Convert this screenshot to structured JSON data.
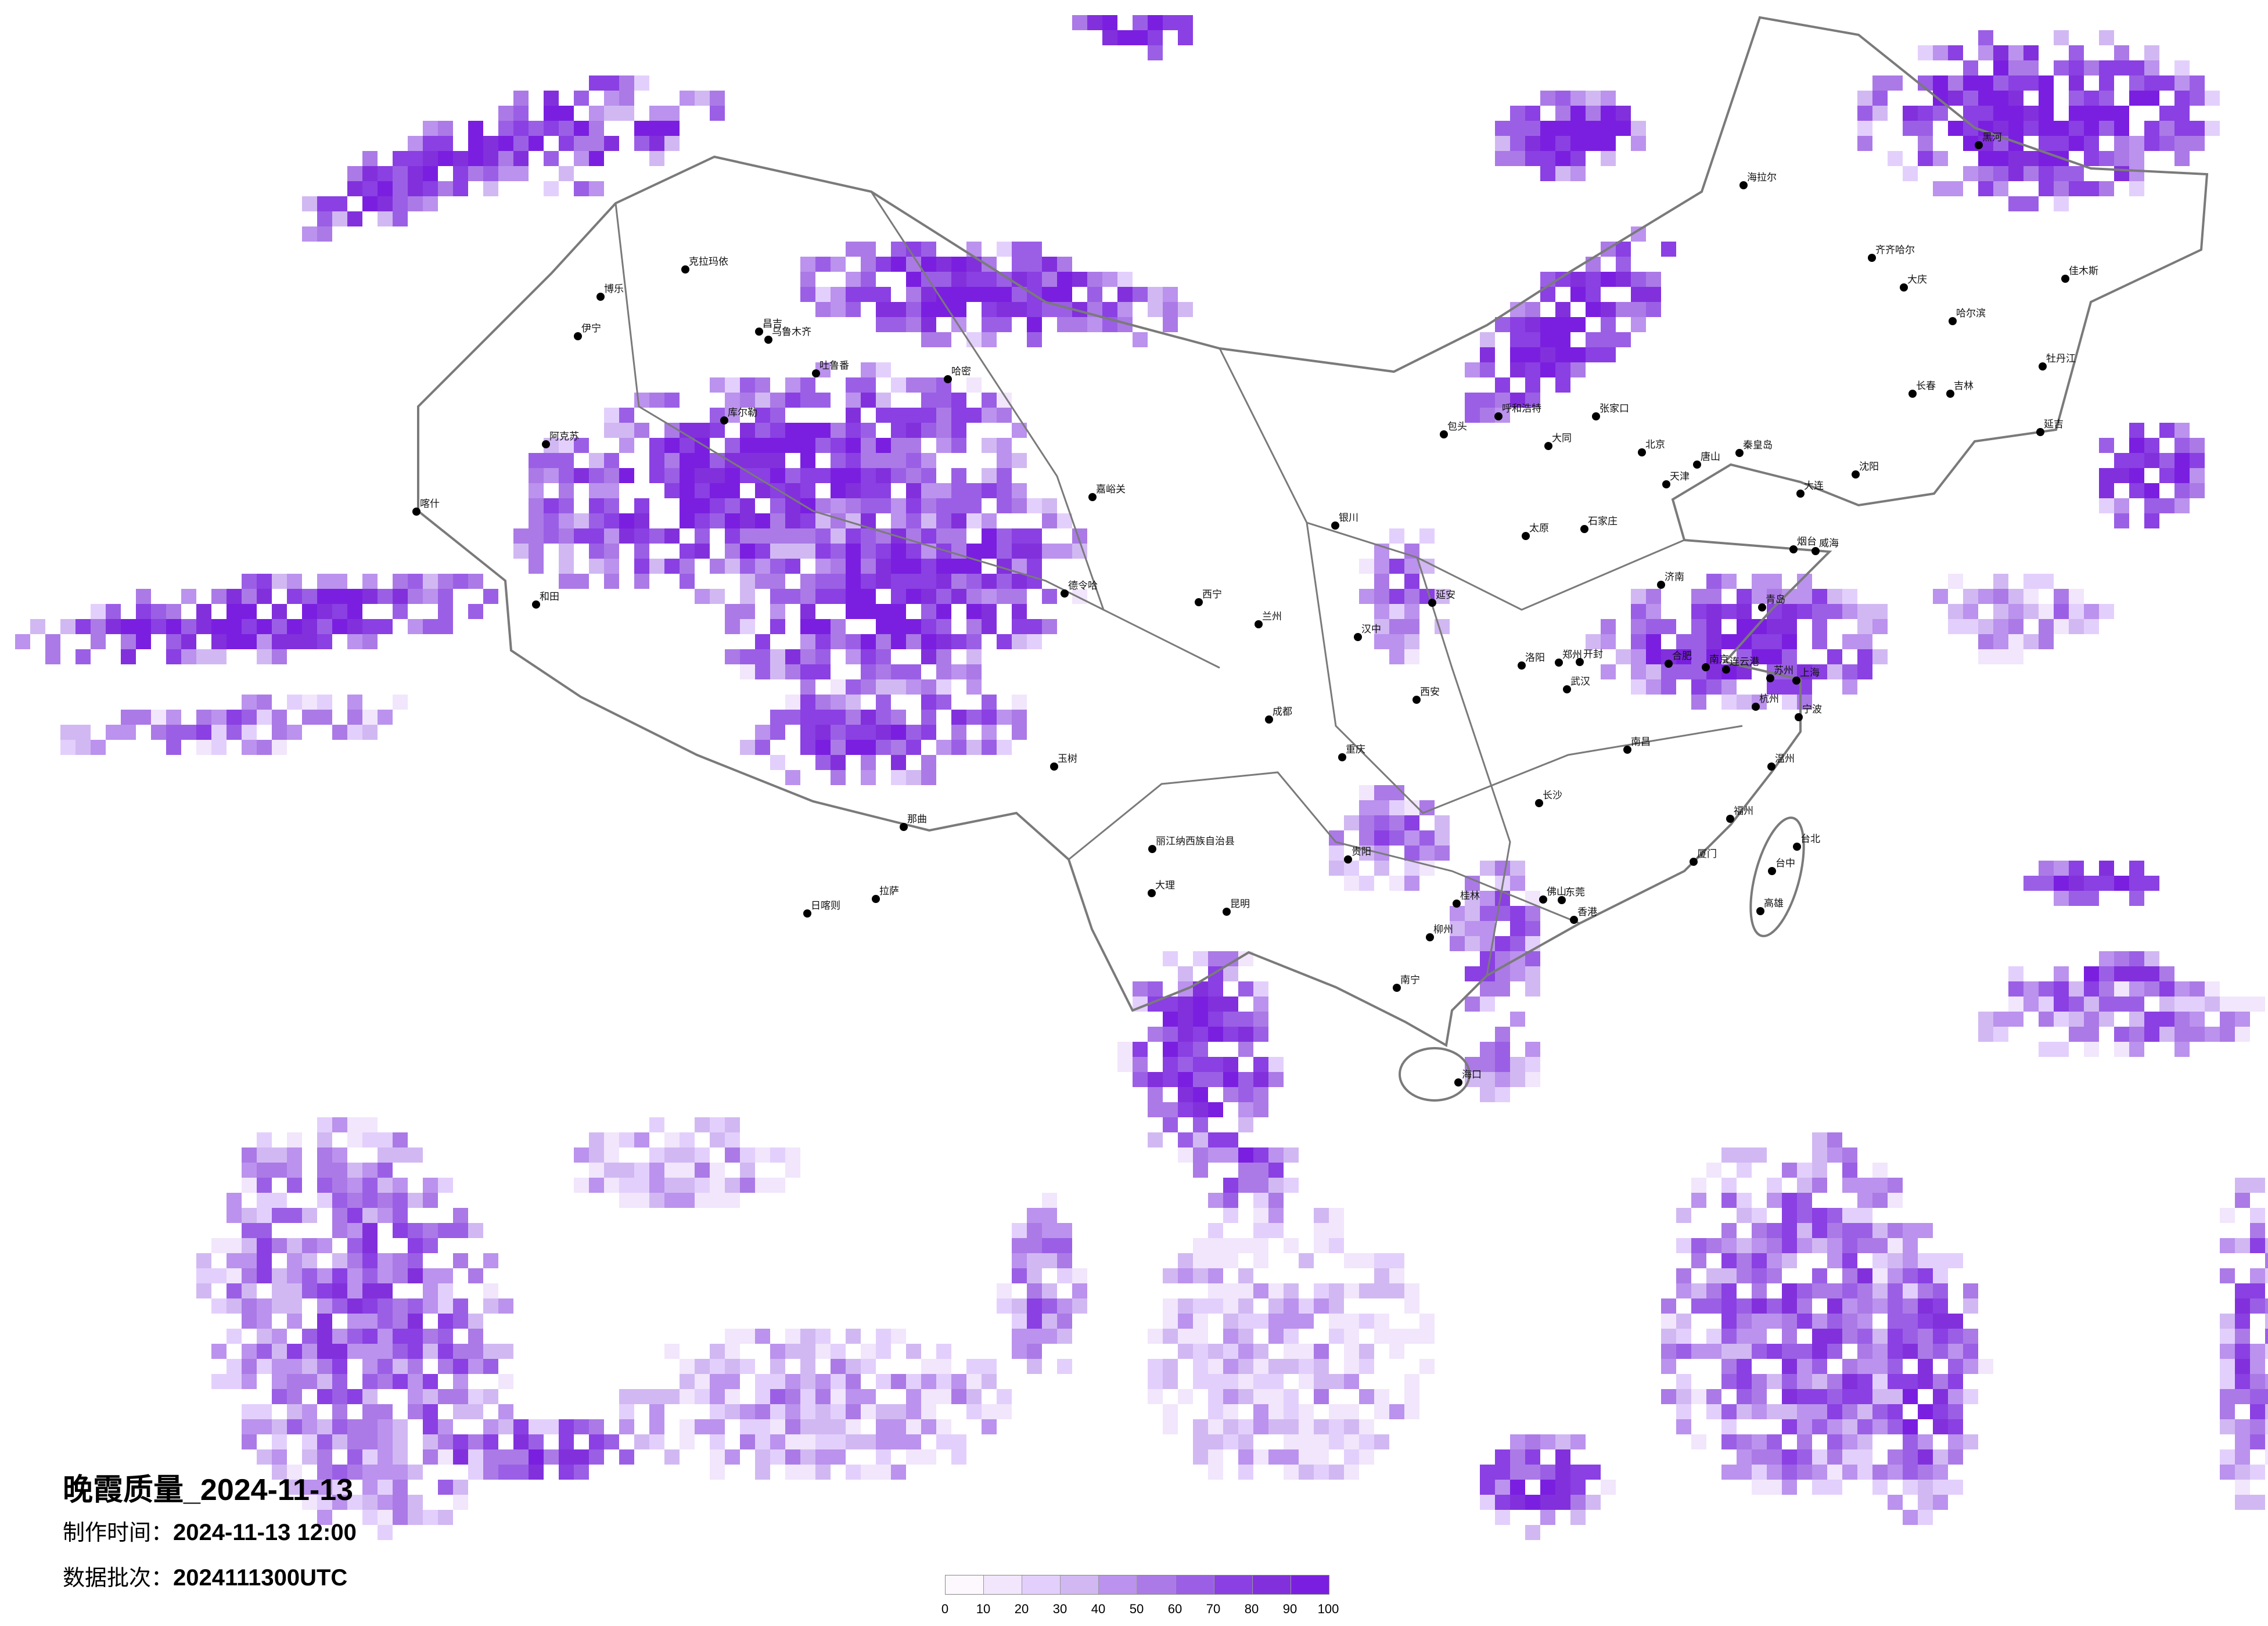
{
  "title": "晚霞质量_2024-11-13",
  "production_time": {
    "label": "制作时间：",
    "value": "2024-11-13 12:00"
  },
  "data_batch": {
    "label": "数据批次：",
    "value": "2024111300UTC"
  },
  "legend": {
    "ticks": [
      "0",
      "10",
      "20",
      "30",
      "40",
      "50",
      "60",
      "70",
      "80",
      "90",
      "100"
    ],
    "colors": [
      "#fdf8fe",
      "#f1e6fb",
      "#e3cffc",
      "#d1b8f2",
      "#bb92ed",
      "#ab7ae6",
      "#9b5fe6",
      "#8a40e2",
      "#8230dc",
      "#7a1fe0"
    ]
  },
  "map": {
    "border_color": "#7a7a7a",
    "cities": [
      "北京",
      "天津",
      "石家庄",
      "太原",
      "济南",
      "青岛",
      "郑州",
      "呼和浩特",
      "大连",
      "张家口",
      "大同",
      "唐山",
      "秦皇岛",
      "洛阳",
      "开封",
      "烟台",
      "威海",
      "连云港",
      "克拉玛依",
      "博乐",
      "伊宁",
      "乌鲁木齐",
      "昌吉",
      "吐鲁番",
      "哈密",
      "库尔勒",
      "阿克苏",
      "喀什",
      "和田",
      "拉萨",
      "那曲",
      "日喀则",
      "德令哈",
      "玉树",
      "嘉峪关",
      "成都",
      "重庆",
      "昆明",
      "贵阳",
      "南宁",
      "桂林",
      "海口",
      "长沙",
      "汉中",
      "丽江纳西族自治县",
      "大理",
      "柳州",
      "南京",
      "合肥",
      "上海",
      "杭州",
      "武汉",
      "南昌",
      "福州",
      "厦门",
      "佛山",
      "东莞",
      "香港",
      "台北",
      "台中",
      "高雄",
      "温州",
      "苏州",
      "宁波",
      "哈尔滨",
      "长春",
      "吉林",
      "齐齐哈尔",
      "黑河",
      "海拉尔",
      "沈阳",
      "牡丹江",
      "佳木斯",
      "大庆",
      "延吉",
      "兰州",
      "西宁",
      "银川",
      "西安",
      "包头",
      "延安"
    ]
  }
}
